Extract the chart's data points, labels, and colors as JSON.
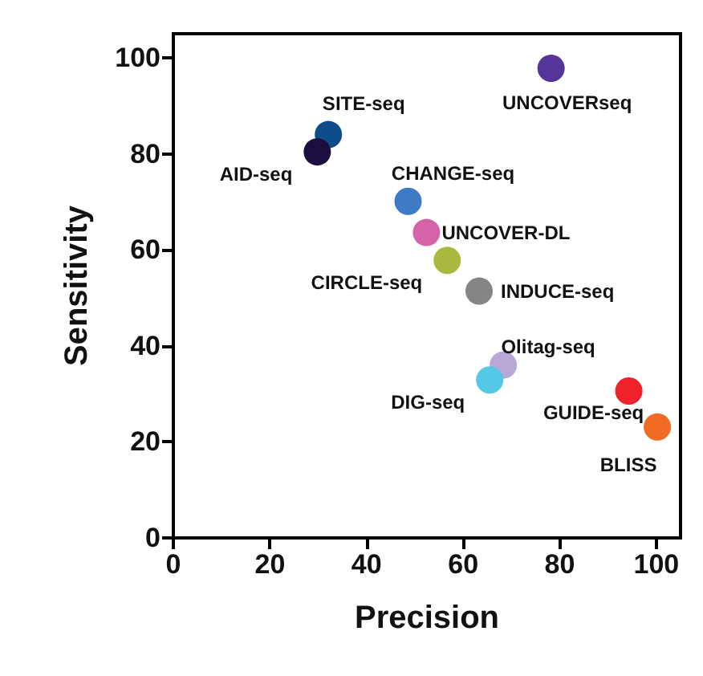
{
  "chart_data": {
    "type": "scatter",
    "xlabel": "Precision",
    "ylabel": "Sensitivity",
    "xlim": [
      0,
      105
    ],
    "ylim": [
      0,
      105
    ],
    "xticks": [
      0,
      20,
      40,
      60,
      80,
      100
    ],
    "yticks": [
      0,
      20,
      40,
      60,
      80,
      100
    ],
    "grid": false,
    "legend": false,
    "marker": "circle",
    "series": [
      {
        "name": "UNCOVERseq",
        "color": "#55359a",
        "x": [
          78.2
        ],
        "values": [
          97.8
        ]
      },
      {
        "name": "SITE-seq",
        "color": "#0e4d8a",
        "x": [
          32.1
        ],
        "values": [
          84.0
        ]
      },
      {
        "name": "AID-seq",
        "color": "#1c0f3f",
        "x": [
          29.8
        ],
        "values": [
          80.4
        ]
      },
      {
        "name": "CHANGE-seq",
        "color": "#3f7bc4",
        "x": [
          48.6
        ],
        "values": [
          70.1
        ]
      },
      {
        "name": "UNCOVER-DL",
        "color": "#d563a8",
        "x": [
          52.4
        ],
        "values": [
          63.6
        ]
      },
      {
        "name": "CIRCLE-seq",
        "color": "#a9b83e",
        "x": [
          56.7
        ],
        "values": [
          57.8
        ]
      },
      {
        "name": "INDUCE-seq",
        "color": "#858585",
        "x": [
          63.3
        ],
        "values": [
          51.4
        ]
      },
      {
        "name": "Olitag-seq",
        "color": "#b8a8d8",
        "x": [
          68.3
        ],
        "values": [
          36.0
        ]
      },
      {
        "name": "DIG-seq",
        "color": "#55c8e8",
        "x": [
          65.5
        ],
        "values": [
          32.9
        ]
      },
      {
        "name": "GUIDE-seq",
        "color": "#ee2228",
        "x": [
          94.3
        ],
        "values": [
          30.6
        ]
      },
      {
        "name": "BLISS",
        "color": "#f26b22",
        "x": [
          100.2
        ],
        "values": [
          23.1
        ]
      }
    ]
  }
}
